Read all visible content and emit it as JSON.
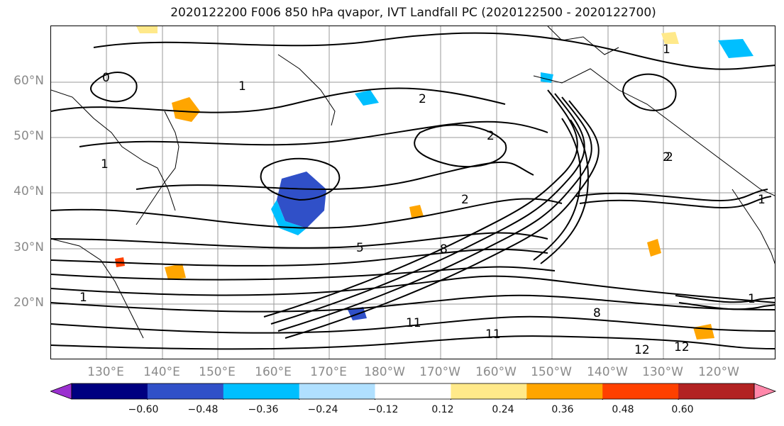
{
  "title": "2020122200 F006 850 hPa qvapor, IVT Landfall PC (2020122500 - 2020122700)",
  "lat_labels": [
    "60°N",
    "50°N",
    "40°N",
    "30°N",
    "20°N"
  ],
  "lon_labels": [
    "130°E",
    "140°E",
    "150°E",
    "160°E",
    "170°E",
    "180°W",
    "170°W",
    "160°W",
    "150°W",
    "140°W",
    "130°W",
    "120°W"
  ],
  "colorbar": {
    "colors": [
      "#9b30d0",
      "#000080",
      "#3050c8",
      "#00bfff",
      "#b0e0ff",
      "#ffffff",
      "#ffe98a",
      "#ffa500",
      "#ff4000",
      "#b22222",
      "#ff88aa"
    ],
    "tick_labels": [
      "−0.60",
      "−0.48",
      "−0.36",
      "−0.24",
      "−0.12",
      "0.12",
      "0.24",
      "0.36",
      "0.48",
      "0.60"
    ]
  },
  "contour_labels": [
    "0",
    "1",
    "1",
    "2",
    "2",
    "2",
    "2",
    "1",
    "5",
    "8",
    "11",
    "11",
    "12",
    "8",
    "1",
    "12",
    "2",
    "1",
    "1"
  ],
  "colors": {
    "contour": "#000000",
    "grid": "#9a9a9a",
    "coast": "#000000",
    "axis_text": "#8a8a8a"
  }
}
